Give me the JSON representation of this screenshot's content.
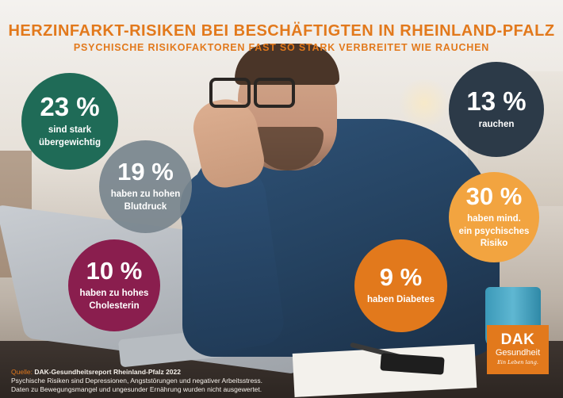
{
  "header": {
    "title": "HERZINFARKT-RISIKEN BEI BESCHÄFTIGTEN IN RHEINLAND-PFALZ",
    "subtitle": "PSYCHISCHE RISIKOFAKTOREN FAST SO STARK VERBREITET WIE RAUCHEN"
  },
  "stats": [
    {
      "value": "23 %",
      "label_line1": "sind stark",
      "label_line2": "übergewichtig",
      "color": "#1f6b57"
    },
    {
      "value": "19 %",
      "label_line1": "haben zu hohen",
      "label_line2": "Blutdruck",
      "color": "#78858e"
    },
    {
      "value": "10 %",
      "label_line1": "haben zu hohes",
      "label_line2": "Cholesterin",
      "color": "#8a1e4e"
    },
    {
      "value": "13 %",
      "label_line1": "rauchen",
      "color": "#2c3a48"
    },
    {
      "value": "30 %",
      "label_line1": "haben mind.",
      "label_line2": "ein psychisches",
      "label_line3": "Risiko",
      "color": "#f2a440"
    },
    {
      "value": "9 %",
      "label_line1": "haben Diabetes",
      "color": "#e2791c"
    }
  ],
  "source": {
    "key": "Quelle:",
    "title": "DAK-Gesundheitsreport Rheinland-Pfalz 2022",
    "note_line1": "Psychische Risiken sind Depressionen, Angststörungen und negativer Arbeitsstress.",
    "note_line2": "Daten zu Bewegungsmangel und ungesunder Ernährung wurden nicht ausgewertet."
  },
  "logo": {
    "brand": "DAK",
    "brand_sub": "Gesundheit",
    "tagline": "Ein Leben lang."
  },
  "colors": {
    "accent": "#e2791c"
  }
}
